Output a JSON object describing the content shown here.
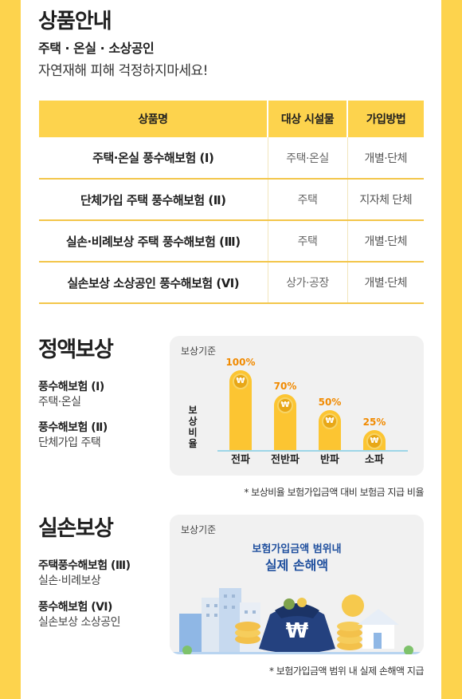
{
  "header": {
    "title": "상품안내",
    "subtitle": "주택 · 온실 · 소상공인",
    "tagline": "자연재해 피해 걱정하지마세요!"
  },
  "table": {
    "headers": [
      "상품명",
      "대상 시설물",
      "가입방법"
    ],
    "rows": [
      {
        "name": "주택·온실 풍수해보험 (Ⅰ)",
        "facility": "주택·온실",
        "method": "개별·단체"
      },
      {
        "name": "단체가입 주택 풍수해보험 (Ⅱ)",
        "facility": "주택",
        "method": "지자체 단체"
      },
      {
        "name": "실손·비례보상 주택 풍수해보험 (Ⅲ)",
        "facility": "주택",
        "method": "개별·단체"
      },
      {
        "name": "실손보상 소상공인 풍수해보험 (Ⅵ)",
        "facility": "상가·공장",
        "method": "개별·단체"
      }
    ]
  },
  "fixed": {
    "title": "정액보상",
    "items": [
      {
        "name": "풍수해보험 (Ⅰ)",
        "desc": "주택·온실"
      },
      {
        "name": "풍수해보험 (Ⅱ)",
        "desc": "단체가입 주택"
      }
    ],
    "panel_label": "보상기준",
    "note": "* 보상비율 보험가입금액 대비 보험금 지급 비율"
  },
  "actual": {
    "title": "실손보상",
    "items": [
      {
        "name": "주택풍수해보험 (Ⅲ)",
        "desc": "실손·비례보상"
      },
      {
        "name": "풍수해보험 (Ⅵ)",
        "desc": "실손보상 소상공인"
      }
    ],
    "panel_label": "보상기준",
    "headline1": "보험가입금액 범위내",
    "headline2": "실제 손해액",
    "note": "* 보험가입금액 범위 내 실제 손해액 지급"
  },
  "chart_data": {
    "type": "bar",
    "categories": [
      "전파",
      "전반파",
      "반파",
      "소파"
    ],
    "values": [
      100,
      70,
      50,
      25
    ],
    "value_labels": [
      "100%",
      "70%",
      "50%",
      "25%"
    ],
    "ylabel": "보상비율",
    "ylim": [
      0,
      100
    ],
    "colors": {
      "bar": "#fcc532",
      "label": "#f18a00"
    }
  },
  "icons": {
    "coin": "won-coin-icon",
    "bag": "money-bag-icon"
  },
  "won_symbol": "₩"
}
